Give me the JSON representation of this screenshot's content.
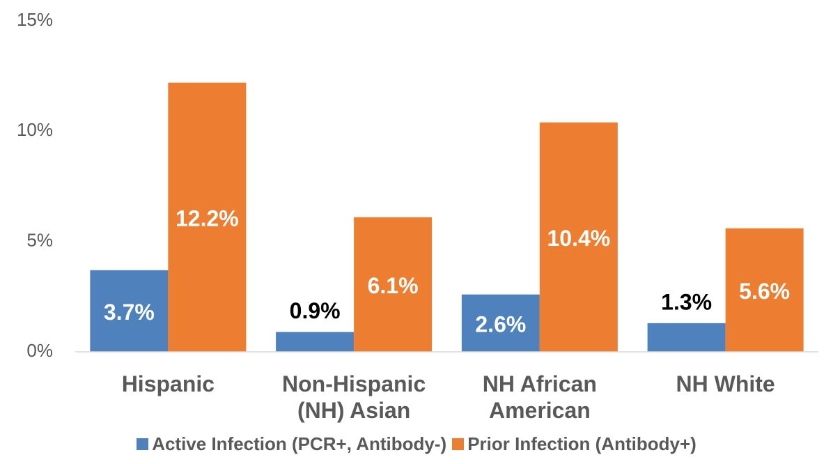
{
  "chart_data": {
    "type": "bar",
    "categories": [
      "Hispanic",
      "Non-Hispanic (NH) Asian",
      "NH African American",
      "NH White"
    ],
    "series": [
      {
        "name": "Active Infection (PCR+, Antibody-)",
        "color": "#4f81bd",
        "values": [
          3.7,
          0.9,
          2.6,
          1.3
        ],
        "value_labels": [
          "3.7%",
          "0.9%",
          "2.6%",
          "1.3%"
        ]
      },
      {
        "name": "Prior Infection (Antibody+)",
        "color": "#ed7d31",
        "values": [
          12.2,
          6.1,
          10.4,
          5.6
        ],
        "value_labels": [
          "12.2%",
          "6.1%",
          "10.4%",
          "5.6%"
        ]
      }
    ],
    "ylim": [
      0,
      15
    ],
    "yticks": [
      {
        "value": 0,
        "label": "0%"
      },
      {
        "value": 5,
        "label": "5%"
      },
      {
        "value": 10,
        "label": "10%"
      },
      {
        "value": 15,
        "label": "15%"
      }
    ],
    "grid": false,
    "legend": "bottom"
  }
}
